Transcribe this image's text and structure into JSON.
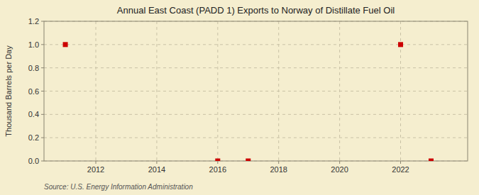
{
  "chart_data": {
    "type": "scatter",
    "title": "Annual East Coast (PADD 1) Exports to Norway of Distillate Fuel Oil",
    "y_label": "Thousand Barrels per Day",
    "annotations": [
      "Source: U.S. Energy Information Administration"
    ],
    "x": [
      2011,
      2016,
      2017,
      2022,
      2023
    ],
    "values": [
      1.0,
      0.0,
      0.0,
      1.0,
      0.0
    ],
    "color": "#cc0000",
    "marker": "square",
    "xlim": [
      2010.3,
      2024.2
    ],
    "ylim": [
      0.0,
      1.2
    ],
    "xticks": [
      2012,
      2014,
      2016,
      2018,
      2020,
      2022
    ],
    "yticks": [
      {
        "value": 0.0,
        "label": "0.0"
      },
      0.2,
      0.4,
      0.6,
      0.8,
      {
        "value": 1.0,
        "label": "1.0"
      },
      1.2
    ],
    "grid": true
  }
}
